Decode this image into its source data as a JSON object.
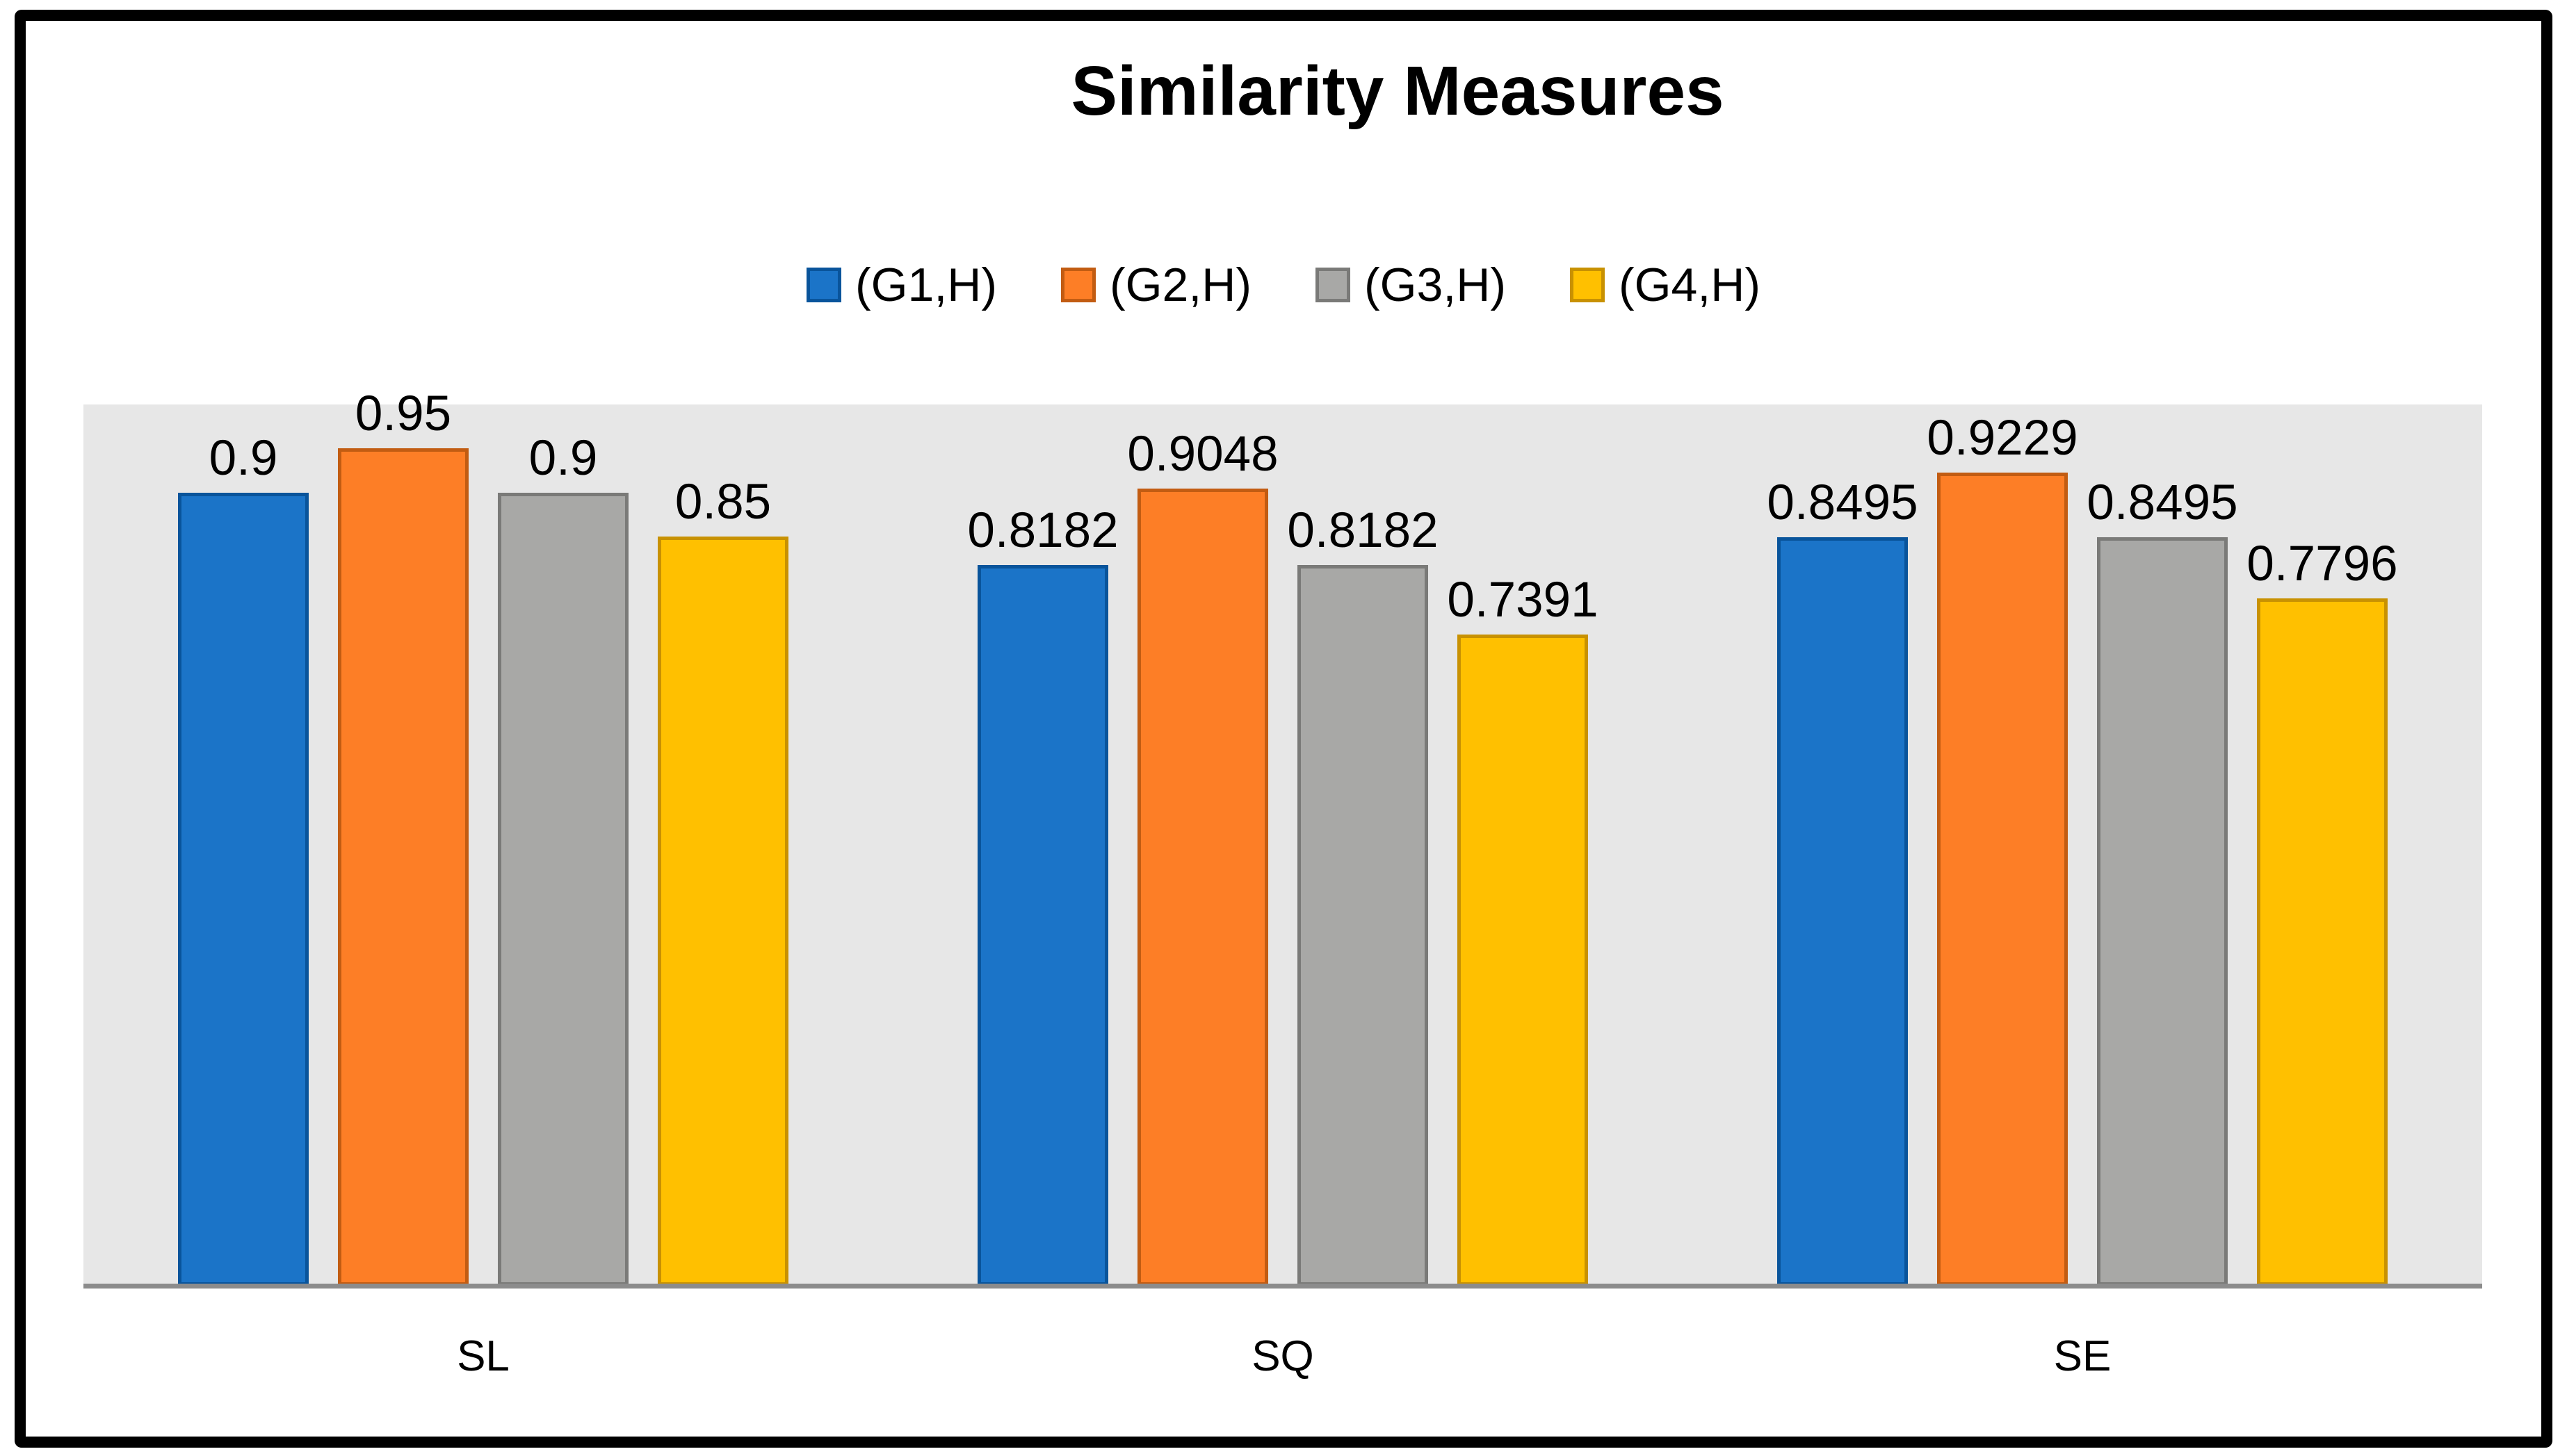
{
  "title": "Similarity Measures",
  "legend": {
    "position": "top",
    "items": [
      {
        "label": "(G1,H)",
        "color": "#1B74C8",
        "border_color": "#09549B"
      },
      {
        "label": "(G2,H)",
        "color": "#FD7E26",
        "border_color": "#C25C12"
      },
      {
        "label": "(G3,H)",
        "color": "#A8A8A6",
        "border_color": "#7A7A78"
      },
      {
        "label": "(G4,H)",
        "color": "#FFC000",
        "border_color": "#C89102"
      }
    ]
  },
  "chart_data": {
    "type": "bar",
    "title": "Similarity Measures",
    "categories": [
      "SL",
      "SQ",
      "SE"
    ],
    "series": [
      {
        "name": "(G1,H)",
        "color": "#1B74C8",
        "border_color": "#09549B",
        "values": [
          0.9,
          0.8182,
          0.8495
        ],
        "labels": [
          "0.9",
          "0.8182",
          "0.8495"
        ]
      },
      {
        "name": "(G2,H)",
        "color": "#FD7E26",
        "border_color": "#C25C12",
        "values": [
          0.95,
          0.9048,
          0.9229
        ],
        "labels": [
          "0.95",
          "0.9048",
          "0.9229"
        ]
      },
      {
        "name": "(G3,H)",
        "color": "#A8A8A6",
        "border_color": "#7A7A78",
        "values": [
          0.9,
          0.8182,
          0.8495
        ],
        "labels": [
          "0.9",
          "0.8182",
          "0.8495"
        ]
      },
      {
        "name": "(G4,H)",
        "color": "#FFC000",
        "border_color": "#C89102",
        "values": [
          0.85,
          0.7391,
          0.7796
        ],
        "labels": [
          "0.85",
          "0.7391",
          "0.7796"
        ]
      }
    ],
    "ylim": [
      0,
      1
    ],
    "xlabel": "",
    "ylabel": "",
    "grid": false,
    "data_labels": true,
    "legend_position": "top",
    "plot_background": "#E7E7E7",
    "axis_line_color": "#8C8C8C"
  }
}
